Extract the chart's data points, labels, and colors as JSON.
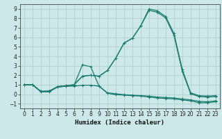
{
  "xlabel": "Humidex (Indice chaleur)",
  "line_color": "#1a7a6e",
  "marker": "+",
  "markersize": 3.5,
  "linewidth": 0.9,
  "bg_color": "#cce8e8",
  "grid_color": "#aacccc",
  "xlim": [
    -0.5,
    23.5
  ],
  "ylim": [
    -1.5,
    9.5
  ],
  "yticks": [
    -1,
    0,
    1,
    2,
    3,
    4,
    5,
    6,
    7,
    8,
    9
  ],
  "xticks": [
    0,
    1,
    2,
    3,
    4,
    5,
    6,
    7,
    8,
    9,
    10,
    11,
    12,
    13,
    14,
    15,
    16,
    17,
    18,
    19,
    20,
    21,
    22,
    23
  ],
  "tick_fontsize": 5.5,
  "xlabel_fontsize": 6.5,
  "series1": [
    1.0,
    1.0,
    0.3,
    0.35,
    0.75,
    0.85,
    0.85,
    0.95,
    0.95,
    0.85,
    0.15,
    0.05,
    -0.05,
    -0.1,
    -0.15,
    -0.2,
    -0.3,
    -0.35,
    -0.4,
    -0.5,
    -0.6,
    -0.75,
    -0.8,
    -0.7
  ],
  "series2": [
    1.0,
    1.0,
    0.25,
    0.25,
    0.75,
    0.85,
    0.95,
    3.1,
    2.9,
    0.85,
    0.1,
    -0.05,
    -0.1,
    -0.15,
    -0.2,
    -0.3,
    -0.4,
    -0.45,
    -0.5,
    -0.6,
    -0.7,
    -0.9,
    -0.9,
    -0.8
  ],
  "series3": [
    1.0,
    1.0,
    0.3,
    0.3,
    0.8,
    0.9,
    1.0,
    1.9,
    2.0,
    1.9,
    2.5,
    3.8,
    5.4,
    5.9,
    7.2,
    9.0,
    8.8,
    8.2,
    6.4,
    2.6,
    0.15,
    -0.15,
    -0.2,
    -0.15
  ],
  "series4": [
    1.0,
    1.0,
    0.3,
    0.3,
    0.8,
    0.9,
    1.0,
    1.9,
    2.0,
    1.9,
    2.5,
    3.8,
    5.4,
    5.9,
    7.2,
    8.85,
    8.65,
    8.05,
    6.2,
    2.4,
    0.05,
    -0.25,
    -0.3,
    -0.25
  ]
}
